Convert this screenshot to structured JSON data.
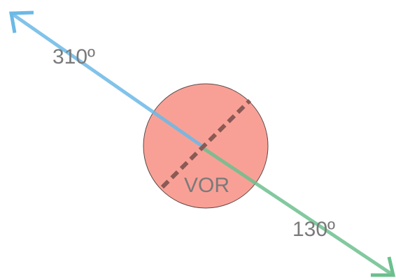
{
  "station": {
    "label": "VOR"
  },
  "radials": [
    {
      "label": "310º"
    },
    {
      "label": "130º"
    }
  ]
}
